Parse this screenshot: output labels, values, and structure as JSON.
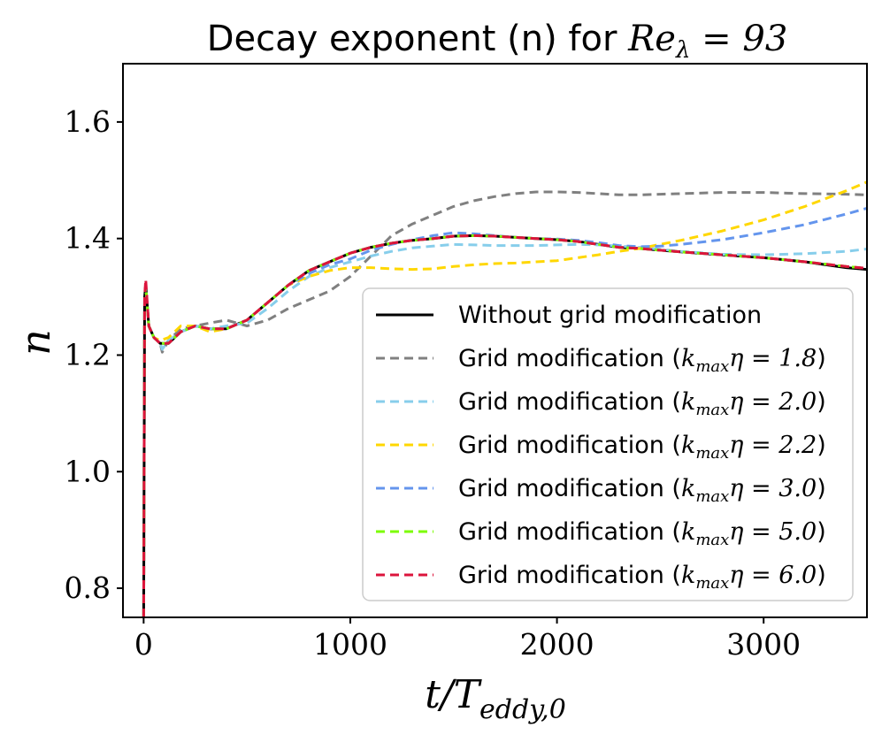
{
  "chart_data": {
    "type": "line",
    "title": {
      "text": "Decay exponent (n) for ",
      "math": "Re",
      "math_sub": "λ",
      "math_rest": " = 93"
    },
    "xlabel": {
      "main": "t/T",
      "sub": "eddy,0"
    },
    "ylabel": "n",
    "xlim": [
      -100,
      3500
    ],
    "ylim": [
      0.75,
      1.7
    ],
    "xticks": [
      0,
      1000,
      2000,
      3000
    ],
    "xtick_labels": [
      "0",
      "1000",
      "2000",
      "3000"
    ],
    "yticks": [
      0.8,
      1.0,
      1.2,
      1.4,
      1.6
    ],
    "ytick_labels": [
      "0.8",
      "1.0",
      "1.2",
      "1.4",
      "1.6"
    ],
    "legend_position": "lower-right",
    "series": [
      {
        "name": "Without grid modification",
        "legend_prefix": "Without grid modification",
        "legend_math": "",
        "color": "#000000",
        "dash": "solid",
        "x": [
          0,
          5,
          10,
          25,
          50,
          80,
          120,
          180,
          250,
          320,
          400,
          500,
          600,
          700,
          800,
          900,
          1000,
          1100,
          1200,
          1300,
          1400,
          1500,
          1600,
          1700,
          1800,
          1900,
          2000,
          2100,
          2200,
          2300,
          2400,
          2500,
          2600,
          2800,
          3000,
          3200,
          3400,
          3500
        ],
        "y": [
          0.75,
          1.3,
          1.32,
          1.25,
          1.23,
          1.22,
          1.22,
          1.24,
          1.25,
          1.245,
          1.245,
          1.26,
          1.29,
          1.32,
          1.345,
          1.36,
          1.375,
          1.385,
          1.392,
          1.397,
          1.4,
          1.404,
          1.405,
          1.404,
          1.402,
          1.4,
          1.398,
          1.395,
          1.39,
          1.385,
          1.383,
          1.38,
          1.377,
          1.372,
          1.367,
          1.36,
          1.35,
          1.347
        ]
      },
      {
        "name": "Grid modification (kmax η = 1.8)",
        "legend_prefix": "Grid modification (",
        "legend_math": "1.8",
        "color": "#808080",
        "dash": "dashed",
        "x": [
          0,
          5,
          10,
          25,
          50,
          80,
          90,
          120,
          180,
          250,
          320,
          400,
          500,
          600,
          700,
          800,
          900,
          1000,
          1100,
          1200,
          1300,
          1400,
          1500,
          1600,
          1700,
          1800,
          1900,
          2000,
          2100,
          2200,
          2300,
          2400,
          2600,
          2800,
          3000,
          3200,
          3400,
          3500
        ],
        "y": [
          0.75,
          1.3,
          1.32,
          1.25,
          1.23,
          1.22,
          1.205,
          1.225,
          1.245,
          1.25,
          1.255,
          1.26,
          1.25,
          1.26,
          1.28,
          1.295,
          1.31,
          1.335,
          1.37,
          1.405,
          1.425,
          1.44,
          1.455,
          1.465,
          1.472,
          1.477,
          1.48,
          1.48,
          1.479,
          1.477,
          1.475,
          1.475,
          1.477,
          1.479,
          1.479,
          1.477,
          1.476,
          1.475
        ]
      },
      {
        "name": "Grid modification (kmax η = 2.0)",
        "legend_prefix": "Grid modification (",
        "legend_math": "2.0",
        "color": "#87ceeb",
        "dash": "dashed",
        "x": [
          0,
          5,
          10,
          25,
          50,
          80,
          90,
          120,
          180,
          250,
          320,
          400,
          500,
          600,
          700,
          800,
          900,
          1000,
          1100,
          1200,
          1300,
          1400,
          1500,
          1600,
          1700,
          1800,
          1900,
          2000,
          2100,
          2200,
          2300,
          2400,
          2600,
          2800,
          3000,
          3200,
          3400,
          3500
        ],
        "y": [
          0.75,
          1.3,
          1.32,
          1.25,
          1.23,
          1.22,
          1.21,
          1.225,
          1.24,
          1.25,
          1.245,
          1.25,
          1.255,
          1.28,
          1.31,
          1.335,
          1.35,
          1.36,
          1.37,
          1.378,
          1.384,
          1.387,
          1.39,
          1.389,
          1.388,
          1.388,
          1.388,
          1.389,
          1.39,
          1.389,
          1.387,
          1.385,
          1.378,
          1.373,
          1.372,
          1.374,
          1.378,
          1.382
        ]
      },
      {
        "name": "Grid modification (kmax η = 2.2)",
        "legend_prefix": "Grid modification (",
        "legend_math": "2.2",
        "color": "#ffd700",
        "dash": "dashed",
        "x": [
          0,
          5,
          10,
          25,
          50,
          80,
          120,
          180,
          250,
          320,
          400,
          500,
          600,
          700,
          800,
          900,
          1000,
          1100,
          1200,
          1300,
          1400,
          1500,
          1600,
          1700,
          1800,
          1900,
          2000,
          2100,
          2200,
          2300,
          2400,
          2500,
          2600,
          2800,
          3000,
          3200,
          3400,
          3500
        ],
        "y": [
          0.75,
          1.3,
          1.32,
          1.25,
          1.23,
          1.225,
          1.23,
          1.25,
          1.25,
          1.24,
          1.245,
          1.26,
          1.29,
          1.32,
          1.335,
          1.345,
          1.35,
          1.35,
          1.348,
          1.347,
          1.348,
          1.352,
          1.355,
          1.357,
          1.358,
          1.36,
          1.362,
          1.367,
          1.372,
          1.378,
          1.383,
          1.39,
          1.397,
          1.413,
          1.432,
          1.455,
          1.482,
          1.497
        ]
      },
      {
        "name": "Grid modification (kmax η = 3.0)",
        "legend_prefix": "Grid modification (",
        "legend_math": "3.0",
        "color": "#6495ed",
        "dash": "dashed",
        "x": [
          0,
          5,
          10,
          25,
          50,
          80,
          120,
          180,
          250,
          320,
          400,
          500,
          600,
          700,
          800,
          900,
          1000,
          1100,
          1200,
          1300,
          1400,
          1500,
          1600,
          1700,
          1800,
          1900,
          2000,
          2100,
          2200,
          2300,
          2400,
          2500,
          2600,
          2800,
          3000,
          3200,
          3400,
          3500
        ],
        "y": [
          0.75,
          1.3,
          1.32,
          1.25,
          1.23,
          1.22,
          1.22,
          1.24,
          1.25,
          1.245,
          1.245,
          1.26,
          1.29,
          1.32,
          1.34,
          1.355,
          1.365,
          1.38,
          1.39,
          1.398,
          1.405,
          1.41,
          1.408,
          1.405,
          1.402,
          1.4,
          1.399,
          1.397,
          1.393,
          1.388,
          1.386,
          1.387,
          1.39,
          1.398,
          1.41,
          1.424,
          1.442,
          1.452
        ]
      },
      {
        "name": "Grid modification (kmax η = 5.0)",
        "legend_prefix": "Grid modification (",
        "legend_math": "5.0",
        "color": "#7cfc00",
        "dash": "dashed",
        "x": [
          0,
          5,
          10,
          25,
          50,
          80,
          120,
          180,
          250,
          320,
          400,
          500,
          600,
          700,
          800,
          900,
          1000,
          1100,
          1200,
          1300,
          1400,
          1500,
          1600,
          1700,
          1800,
          1900,
          2000,
          2100,
          2200,
          2300,
          2400,
          2500,
          2600,
          2800,
          3000,
          3200,
          3400,
          3500
        ],
        "y": [
          0.75,
          1.3,
          1.32,
          1.25,
          1.23,
          1.22,
          1.22,
          1.24,
          1.25,
          1.245,
          1.245,
          1.26,
          1.29,
          1.32,
          1.345,
          1.36,
          1.375,
          1.385,
          1.392,
          1.397,
          1.4,
          1.404,
          1.405,
          1.404,
          1.402,
          1.4,
          1.398,
          1.395,
          1.39,
          1.385,
          1.383,
          1.38,
          1.377,
          1.372,
          1.367,
          1.36,
          1.352,
          1.349
        ]
      },
      {
        "name": "Grid modification (kmax η = 6.0)",
        "legend_prefix": "Grid modification (",
        "legend_math": "6.0",
        "color": "#dc143c",
        "dash": "dashed",
        "x": [
          0,
          5,
          10,
          25,
          50,
          80,
          120,
          180,
          250,
          320,
          400,
          500,
          600,
          700,
          800,
          900,
          1000,
          1100,
          1200,
          1300,
          1400,
          1500,
          1600,
          1700,
          1800,
          1900,
          2000,
          2100,
          2200,
          2300,
          2400,
          2500,
          2600,
          2800,
          3000,
          3200,
          3400,
          3500
        ],
        "y": [
          0.75,
          1.3,
          1.33,
          1.25,
          1.23,
          1.22,
          1.22,
          1.24,
          1.25,
          1.245,
          1.245,
          1.26,
          1.29,
          1.32,
          1.345,
          1.36,
          1.375,
          1.385,
          1.392,
          1.397,
          1.4,
          1.404,
          1.405,
          1.404,
          1.402,
          1.4,
          1.398,
          1.395,
          1.39,
          1.385,
          1.383,
          1.38,
          1.377,
          1.372,
          1.367,
          1.36,
          1.352,
          1.349
        ]
      }
    ]
  }
}
